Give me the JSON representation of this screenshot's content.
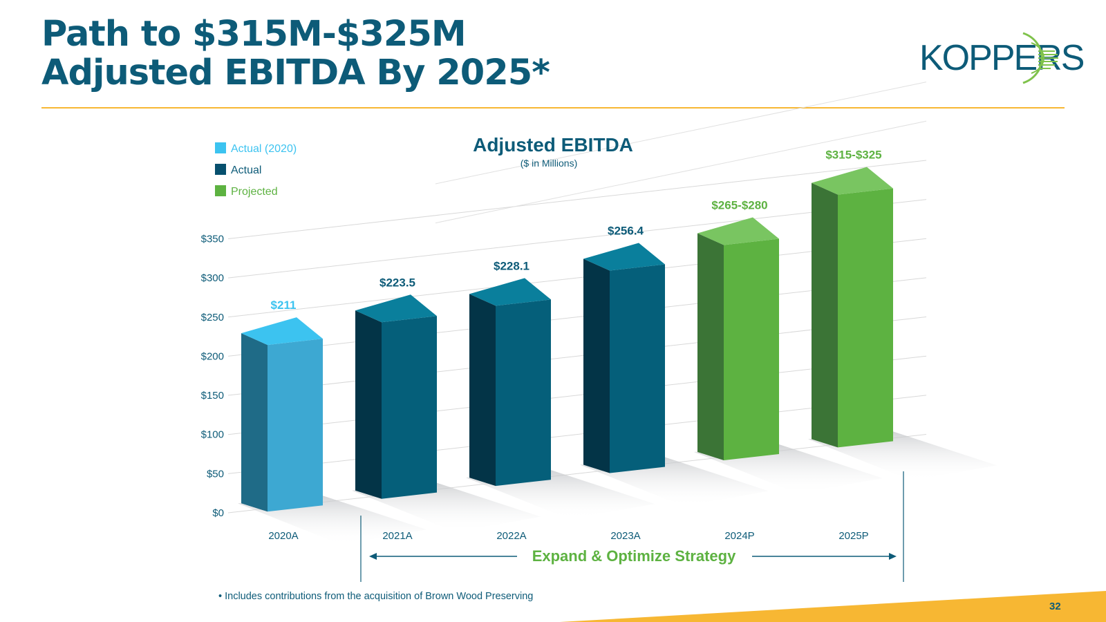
{
  "header": {
    "title_line1": "Path to $315M-$325M",
    "title_line2": "Adjusted EBITDA By 2025*"
  },
  "logo": {
    "text": "KOPPERS"
  },
  "chart_data": {
    "type": "bar",
    "title": "Adjusted EBITDA",
    "subtitle": "($ in Millions)",
    "categories": [
      "2020A",
      "2021A",
      "2022A",
      "2023A",
      "2024P",
      "2025P"
    ],
    "values": [
      211,
      223.5,
      228.1,
      256.4,
      272.5,
      320
    ],
    "value_labels": [
      "$211",
      "$223.5",
      "$228.1",
      "$256.4",
      "$265-$280",
      "$315-$325"
    ],
    "series_kind": [
      "actual2020",
      "actual",
      "actual",
      "actual",
      "projected",
      "projected"
    ],
    "ylim": [
      0,
      350
    ],
    "yticks": [
      0,
      50,
      100,
      150,
      200,
      250,
      300,
      350
    ],
    "ytick_labels": [
      "$0",
      "$50",
      "$100",
      "$150",
      "$200",
      "$250",
      "$300",
      "$350"
    ],
    "grid": true,
    "legend": {
      "position": "top-left",
      "entries": [
        {
          "label": "Actual (2020)",
          "color": "#3cc3f0"
        },
        {
          "label": "Actual",
          "color": "#07506e"
        },
        {
          "label": "Projected",
          "color": "#5db241"
        }
      ]
    },
    "annotation": "Expand & Optimize Strategy"
  },
  "footnote": "• Includes contributions from the acquisition of Brown Wood Preserving",
  "page_number": "32",
  "colors": {
    "brand_blue": "#0d5b78",
    "accent_orange": "#f7b733",
    "projected_green": "#5db241",
    "actual_2020_blue": "#3cc3f0"
  }
}
